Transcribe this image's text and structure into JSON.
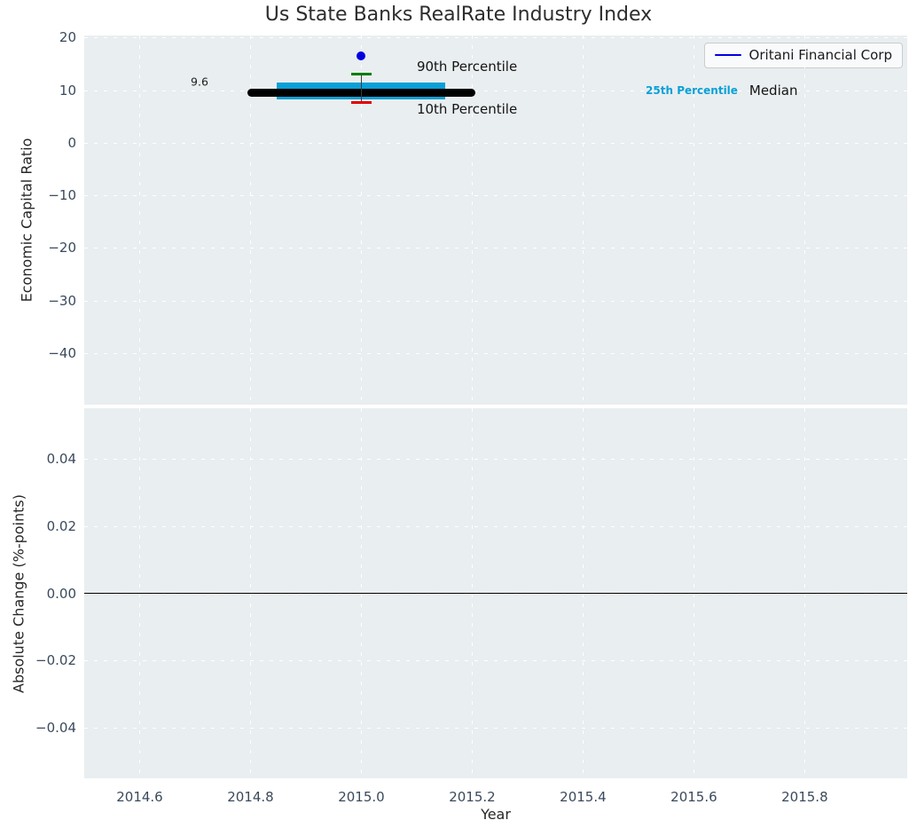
{
  "title": "Us State Banks RealRate Industry Index",
  "x_axis": {
    "label": "Year",
    "xlim": [
      2014.5,
      2015.985
    ],
    "xticks": {
      "values": [
        2014.6,
        2014.8,
        2015.0,
        2015.2,
        2015.4,
        2015.6,
        2015.8
      ],
      "labels": [
        "2014.6",
        "2014.8",
        "2015.0",
        "2015.2",
        "2015.4",
        "2015.6",
        "2015.8"
      ]
    }
  },
  "chart_data": [
    {
      "type": "box",
      "panel": "top",
      "title": "Us State Banks RealRate Industry Index",
      "ylabel": "Economic Capital Ratio",
      "ylim": [
        -49.8,
        20.4
      ],
      "grid": true,
      "background_color": "#e9eef0",
      "yticks": {
        "values": [
          20,
          10,
          0,
          -10,
          -20,
          -30,
          -40
        ],
        "labels": [
          "20",
          "10",
          "0",
          "−10",
          "−20",
          "−30",
          "−40"
        ]
      },
      "legend": {
        "position": "upper right",
        "entries": [
          {
            "label": "Oritani Financial Corp",
            "color": "#0000e0"
          }
        ]
      },
      "box": {
        "x": 2015.0,
        "p10": 7.7,
        "p25": 8.3,
        "median": 9.6,
        "p75": 11.4,
        "p90": 13.0,
        "company_value": 16.5,
        "median_label": "9.6",
        "box_half_width": 0.152,
        "median_half_width": 0.206,
        "cap_half_width": 0.018,
        "colors": {
          "box": "#0aa0d7",
          "median": "#000000",
          "p90_cap": "#007d00",
          "p10_cap": "#e10000",
          "whisker": "#3d3d3d",
          "company_point": "#0000e0"
        }
      },
      "annotations": [
        {
          "text": "9.6",
          "x": 2014.708,
          "y": 11.6,
          "ha": "center",
          "style": "value-label"
        },
        {
          "text": "90th Percentile",
          "x": 2015.1,
          "y": 14.5,
          "ha": "left",
          "style": "plain"
        },
        {
          "text": "10th Percentile",
          "x": 2015.1,
          "y": 6.4,
          "ha": "left",
          "style": "plain"
        },
        {
          "text": "25th Percentile",
          "x": 2015.513,
          "y": 9.95,
          "ha": "left",
          "style": "cyan-bold",
          "color": "#0aa0d7"
        },
        {
          "text": "Median",
          "x": 2015.7,
          "y": 9.95,
          "ha": "left",
          "style": "plain"
        }
      ]
    },
    {
      "type": "line",
      "panel": "bottom",
      "ylabel": "Absolute Change (%-points)",
      "ylim": [
        -0.0552,
        0.0552
      ],
      "grid": true,
      "background_color": "#e9eef0",
      "zero_line": 0.0,
      "yticks": {
        "values": [
          0.04,
          0.02,
          0,
          -0.02,
          -0.04
        ],
        "labels": [
          "0.04",
          "0.02",
          "0.00",
          "−0.02",
          "−0.04"
        ]
      },
      "series": []
    }
  ]
}
